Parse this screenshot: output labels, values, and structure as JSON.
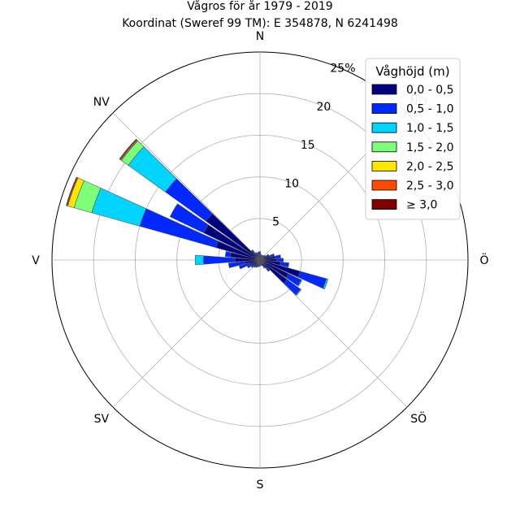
{
  "chart_data": {
    "type": "windrose",
    "title": "Vågros för år 1979 - 2019",
    "subtitle": "Koordinat (Sweref 99 TM): E 354878, N 6241498",
    "radial_max": 25,
    "ring_values": [
      5,
      10,
      15,
      20,
      25
    ],
    "ring_labels": [
      "5",
      "10",
      "15",
      "20",
      "25%"
    ],
    "direction_labels": [
      {
        "angle": 0,
        "label": "N"
      },
      {
        "angle": 45,
        "label": "NO"
      },
      {
        "angle": 90,
        "label": "Ö"
      },
      {
        "angle": 135,
        "label": "SÖ"
      },
      {
        "angle": 180,
        "label": "S"
      },
      {
        "angle": 225,
        "label": "SV"
      },
      {
        "angle": 270,
        "label": "V"
      },
      {
        "angle": 315,
        "label": "NV"
      }
    ],
    "legend": {
      "title": "Våghöjd (m)",
      "placement": "top-right",
      "entries": [
        {
          "label": "0,0 - 0,5",
          "color": "#000080"
        },
        {
          "label": "0,5 - 1,0",
          "color": "#0028ff"
        },
        {
          "label": "1,0 - 1,5",
          "color": "#00d4ff"
        },
        {
          "label": "1,5 - 2,0",
          "color": "#7dff7a"
        },
        {
          "label": "2,0 - 2,5",
          "color": "#ffe600"
        },
        {
          "label": "2,5 - 3,0",
          "color": "#ff4a00"
        },
        {
          "label": "≥ 3,0",
          "color": "#800000"
        }
      ]
    },
    "bin_width_deg": 10,
    "sectors": [
      {
        "direction": 0,
        "cum": [
          0.6,
          1.0
        ]
      },
      {
        "direction": 10,
        "cum": [
          0.5,
          0.7
        ]
      },
      {
        "direction": 20,
        "cum": [
          0.4,
          0.6
        ]
      },
      {
        "direction": 30,
        "cum": [
          0.4,
          0.6
        ]
      },
      {
        "direction": 40,
        "cum": [
          0.5,
          0.7
        ]
      },
      {
        "direction": 50,
        "cum": [
          0.6,
          0.8
        ]
      },
      {
        "direction": 60,
        "cum": [
          0.8,
          1.2
        ]
      },
      {
        "direction": 70,
        "cum": [
          1.2,
          1.8
        ]
      },
      {
        "direction": 80,
        "cum": [
          1.8,
          2.5
        ]
      },
      {
        "direction": 90,
        "cum": [
          2.0,
          2.8
        ]
      },
      {
        "direction": 100,
        "cum": [
          2.5,
          3.5
        ]
      },
      {
        "direction": 110,
        "cum": [
          5.0,
          8.3,
          8.5
        ]
      },
      {
        "direction": 120,
        "cum": [
          3.8,
          5.5,
          5.6
        ]
      },
      {
        "direction": 130,
        "cum": [
          4.0,
          6.0,
          6.1
        ]
      },
      {
        "direction": 140,
        "cum": [
          1.2,
          1.7
        ]
      },
      {
        "direction": 150,
        "cum": [
          0.8,
          1.1
        ]
      },
      {
        "direction": 160,
        "cum": [
          0.5,
          0.7
        ]
      },
      {
        "direction": 170,
        "cum": [
          0.5,
          0.7
        ]
      },
      {
        "direction": 180,
        "cum": [
          0.5,
          0.7
        ]
      },
      {
        "direction": 190,
        "cum": [
          0.5,
          0.8
        ]
      },
      {
        "direction": 200,
        "cum": [
          0.6,
          0.9
        ]
      },
      {
        "direction": 210,
        "cum": [
          0.7,
          1.0
        ]
      },
      {
        "direction": 220,
        "cum": [
          0.8,
          1.1
        ]
      },
      {
        "direction": 230,
        "cum": [
          0.9,
          1.3
        ]
      },
      {
        "direction": 240,
        "cum": [
          1.1,
          1.7
        ]
      },
      {
        "direction": 250,
        "cum": [
          1.3,
          2.6
        ]
      },
      {
        "direction": 260,
        "cum": [
          1.8,
          3.8
        ]
      },
      {
        "direction": 270,
        "cum": [
          3.0,
          6.8,
          7.8
        ]
      },
      {
        "direction": 280,
        "cum": [
          3.6,
          4.2
        ]
      },
      {
        "direction": 290,
        "cum": [
          5.5,
          15.0,
          21.0,
          23.2,
          24.0,
          24.1,
          24.2
        ]
      },
      {
        "direction": 300,
        "cum": [
          7.5,
          12.0
        ]
      },
      {
        "direction": 310,
        "cum": [
          8.0,
          14.0,
          19.5,
          20.5,
          20.6,
          20.7,
          20.8
        ]
      },
      {
        "direction": 320,
        "cum": [
          1.0,
          1.5
        ]
      },
      {
        "direction": 330,
        "cum": [
          0.7,
          1.0
        ]
      },
      {
        "direction": 340,
        "cum": [
          0.6,
          0.9
        ]
      },
      {
        "direction": 350,
        "cum": [
          0.6,
          1.0
        ]
      }
    ]
  }
}
